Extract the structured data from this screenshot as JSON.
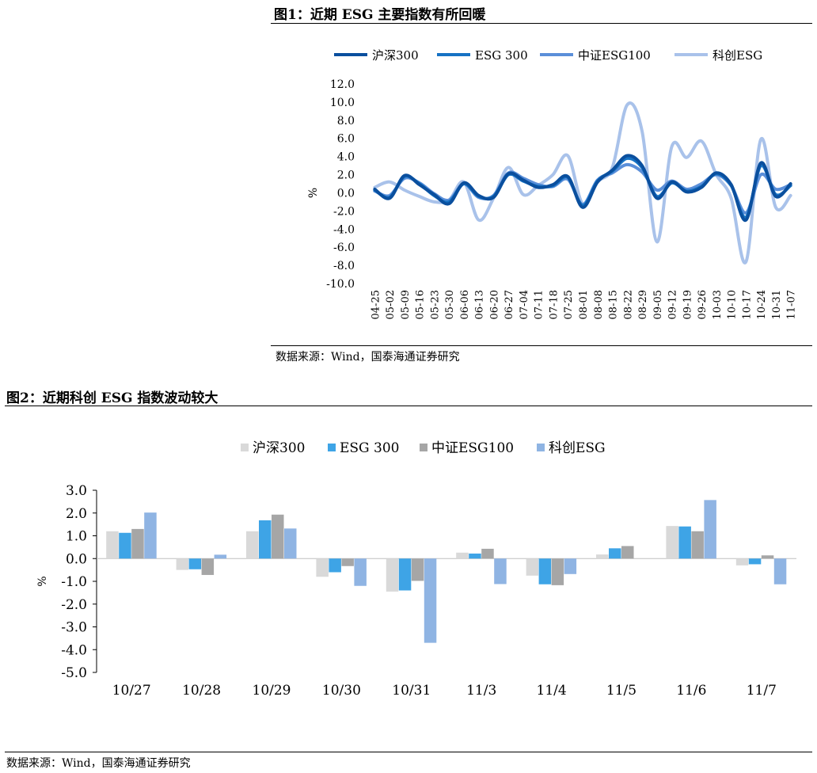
{
  "colors": {
    "hs300": "#0a4f9e",
    "esg300": "#1672c4",
    "zz100": "#5b8fd9",
    "kc": "#a9c2ea",
    "bar_hs300": "#d9d9d9",
    "bar_esg300": "#3ea4e6",
    "bar_zz100": "#a6a6a6",
    "bar_kc": "#8fb4e3"
  },
  "figure1": {
    "title": "图1：近期 ESG 主要指数有所回暖",
    "source": "数据来源：Wind，国泰海通证券研究"
  },
  "figure2": {
    "title": "图2：近期科创 ESG 指数波动较大",
    "source": "数据来源：Wind，国泰海通证券研究"
  },
  "chart_data": [
    {
      "type": "line",
      "title": "图1：近期 ESG 主要指数有所回暖",
      "xlabel": "",
      "ylabel": "%",
      "ylim": [
        -10,
        12
      ],
      "yticks": [
        "12.0",
        "10.0",
        "8.0",
        "6.0",
        "4.0",
        "2.0",
        "0.0",
        "-2.0",
        "-4.0",
        "-6.0",
        "-8.0",
        "-10.0"
      ],
      "legend_position": "top",
      "grid": false,
      "x": [
        "04-25",
        "05-02",
        "05-09",
        "05-16",
        "05-23",
        "05-30",
        "06-06",
        "06-13",
        "06-20",
        "06-27",
        "07-04",
        "07-11",
        "07-18",
        "07-25",
        "08-01",
        "08-08",
        "08-15",
        "08-22",
        "08-29",
        "09-05",
        "09-12",
        "09-19",
        "09-26",
        "10-03",
        "10-10",
        "10-17",
        "10-24",
        "10-31",
        "11-07"
      ],
      "series": [
        {
          "name": "沪深300",
          "color_key": "hs300",
          "values": [
            0.4,
            -0.6,
            1.9,
            0.9,
            -0.2,
            -1.2,
            1.1,
            -0.3,
            -0.5,
            2.1,
            1.4,
            0.6,
            0.9,
            1.8,
            -1.6,
            1.2,
            2.5,
            4.1,
            3.0,
            -0.6,
            1.2,
            0.1,
            0.6,
            2.2,
            0.9,
            -3.0,
            3.3,
            -0.4,
            1.0
          ]
        },
        {
          "name": "ESG 300",
          "color_key": "esg300",
          "values": [
            0.3,
            -0.5,
            1.8,
            1.0,
            -0.3,
            -1.0,
            1.0,
            -0.4,
            -0.4,
            2.0,
            1.3,
            0.7,
            0.8,
            1.7,
            -1.4,
            1.3,
            2.4,
            3.8,
            2.8,
            -0.4,
            1.1,
            0.2,
            0.7,
            2.1,
            0.8,
            -2.7,
            3.0,
            -0.2,
            0.8
          ]
        },
        {
          "name": "中证ESG100",
          "color_key": "zz100",
          "values": [
            0.2,
            -0.3,
            1.6,
            1.1,
            -0.1,
            -0.8,
            1.0,
            -0.5,
            -0.3,
            2.2,
            1.6,
            0.9,
            0.7,
            1.5,
            -1.3,
            1.4,
            2.2,
            3.1,
            2.3,
            0.3,
            1.3,
            0.4,
            1.0,
            2.0,
            0.8,
            -2.2,
            2.0,
            0.4,
            0.9
          ]
        },
        {
          "name": "科创ESG",
          "color_key": "kc",
          "values": [
            0.6,
            1.2,
            0.3,
            -0.4,
            -1.0,
            -0.8,
            1.2,
            -3.0,
            -0.6,
            2.8,
            -0.2,
            0.8,
            2.0,
            4.1,
            -1.2,
            1.2,
            2.8,
            9.7,
            6.8,
            -5.4,
            5.1,
            3.9,
            5.7,
            2.0,
            -0.6,
            -7.6,
            5.9,
            -1.6,
            -0.3
          ]
        }
      ]
    },
    {
      "type": "bar",
      "title": "图2：近期科创 ESG 指数波动较大",
      "xlabel": "",
      "ylabel": "%",
      "ylim": [
        -5,
        3
      ],
      "yticks": [
        "3.0",
        "2.0",
        "1.0",
        "0.0",
        "-1.0",
        "-2.0",
        "-3.0",
        "-4.0",
        "-5.0"
      ],
      "legend_position": "top",
      "grid": false,
      "categories": [
        "10/27",
        "10/28",
        "10/29",
        "10/30",
        "10/31",
        "11/3",
        "11/4",
        "11/5",
        "11/6",
        "11/7"
      ],
      "series": [
        {
          "name": "沪深300",
          "color_key": "bar_hs300",
          "values": [
            1.2,
            -0.5,
            1.2,
            -0.8,
            -1.45,
            0.26,
            -0.75,
            0.18,
            1.43,
            -0.3
          ]
        },
        {
          "name": "ESG 300",
          "color_key": "bar_esg300",
          "values": [
            1.13,
            -0.47,
            1.68,
            -0.6,
            -1.4,
            0.22,
            -1.13,
            0.45,
            1.41,
            -0.25
          ]
        },
        {
          "name": "中证ESG100",
          "color_key": "bar_zz100",
          "values": [
            1.3,
            -0.72,
            1.93,
            -0.33,
            -0.98,
            0.43,
            -1.17,
            0.55,
            1.2,
            0.14
          ]
        },
        {
          "name": "科创ESG",
          "color_key": "bar_kc",
          "values": [
            2.02,
            0.17,
            1.32,
            -1.2,
            -3.7,
            -1.12,
            -0.68,
            0.0,
            2.57,
            -1.13
          ]
        }
      ]
    }
  ]
}
